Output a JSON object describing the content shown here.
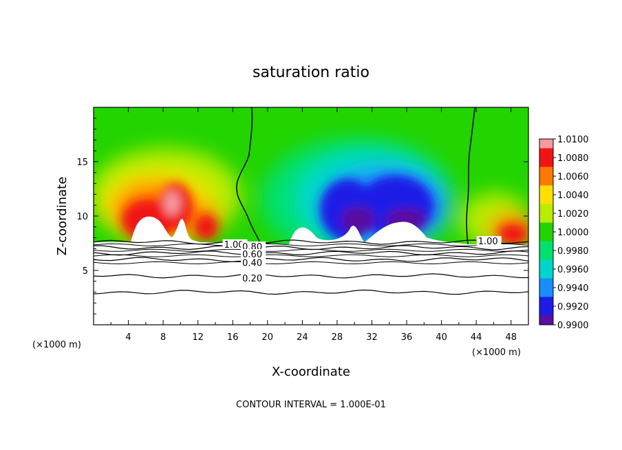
{
  "chart_data": {
    "type": "heatmap",
    "title": "saturation ratio",
    "xlabel": "X-coordinate",
    "ylabel": "Z-coordinate",
    "x_unit_left": "(×1000 m)",
    "x_unit_right": "(×1000 m)",
    "xlim": [
      0,
      50
    ],
    "ylim": [
      0,
      20
    ],
    "xticks": [
      4,
      8,
      12,
      16,
      20,
      24,
      28,
      32,
      36,
      40,
      44,
      48
    ],
    "yticks": [
      5,
      10,
      15
    ],
    "footer": "CONTOUR INTERVAL = 1.000E-01",
    "colorbar": {
      "levels": [
        "1.0100",
        "1.0080",
        "1.0060",
        "1.0040",
        "1.0020",
        "1.0000",
        "0.9980",
        "0.9960",
        "0.9940",
        "0.9920",
        "0.9900"
      ],
      "colors": [
        "#f59aa0",
        "#f01515",
        "#ff7a00",
        "#ffe000",
        "#b8ec00",
        "#22d400",
        "#00e070",
        "#00d6cc",
        "#1a8cff",
        "#1c1ce6",
        "#5a10a0"
      ]
    },
    "field_samples": [
      {
        "x": 5,
        "z": 11,
        "value": 1.008
      },
      {
        "x": 10,
        "z": 12,
        "value": 1.009
      },
      {
        "x": 12.5,
        "z": 10,
        "value": 1.006
      },
      {
        "x": 8,
        "z": 16,
        "value": 1.002
      },
      {
        "x": 17,
        "z": 18,
        "value": 1.001
      },
      {
        "x": 25,
        "z": 17,
        "value": 0.999
      },
      {
        "x": 30,
        "z": 11,
        "value": 0.992
      },
      {
        "x": 36,
        "z": 10,
        "value": 0.991
      },
      {
        "x": 40,
        "z": 16,
        "value": 0.997
      },
      {
        "x": 47,
        "z": 9,
        "value": 1.007
      },
      {
        "x": 46,
        "z": 17,
        "value": 1.0005
      }
    ],
    "contour_lines": [
      {
        "level": "1.00",
        "z": 7.6
      },
      {
        "level": "0.80",
        "z": 7.1
      },
      {
        "level": "0.60",
        "z": 6.6
      },
      {
        "level": "0.40",
        "z": 6.0
      },
      {
        "level": "0.20",
        "z": 4.5
      },
      {
        "level": "",
        "z": 3.0
      }
    ],
    "inline_labels": [
      {
        "text": "1.00",
        "x": 15.0,
        "z": 7.1
      },
      {
        "text": "0.80",
        "x": 17.1,
        "z": 6.9
      },
      {
        "text": "0.60",
        "x": 17.1,
        "z": 6.2
      },
      {
        "text": "0.40",
        "x": 17.1,
        "z": 5.4
      },
      {
        "text": "0.20",
        "x": 17.1,
        "z": 4.0
      },
      {
        "text": "1.00",
        "x": 44.2,
        "z": 7.4
      }
    ]
  }
}
